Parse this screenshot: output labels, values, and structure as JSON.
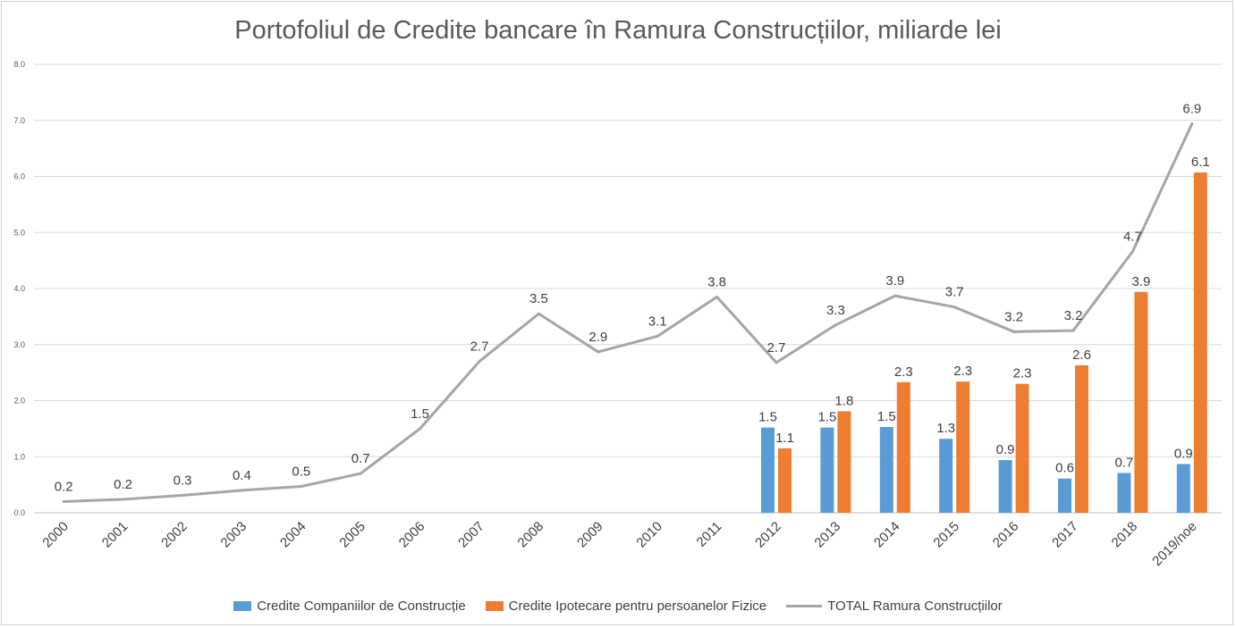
{
  "chart_data": {
    "type": "bar",
    "title": "Portofoliul de Credite bancare în Ramura Construcțiilor, miliarde lei",
    "xlabel": "",
    "ylabel": "",
    "ylim": [
      0,
      8
    ],
    "yticks": [
      "0.0",
      "1.0",
      "2.0",
      "3.0",
      "4.0",
      "5.0",
      "6.0",
      "7.0",
      "8.0"
    ],
    "grid": true,
    "legend_position": "bottom",
    "categories": [
      "2000",
      "2001",
      "2002",
      "2003",
      "2004",
      "2005",
      "2006",
      "2007",
      "2008",
      "2009",
      "2010",
      "2011",
      "2012",
      "2013",
      "2014",
      "2015",
      "2016",
      "2017",
      "2018",
      "2019/noe"
    ],
    "series": [
      {
        "name": "Credite Companiilor de Construcție",
        "type": "bar",
        "color": "#5B9BD5",
        "values": [
          null,
          null,
          null,
          null,
          null,
          null,
          null,
          null,
          null,
          null,
          null,
          null,
          1.52,
          1.52,
          1.53,
          1.32,
          0.94,
          0.61,
          0.71,
          0.87
        ],
        "labels": [
          "",
          "",
          "",
          "",
          "",
          "",
          "",
          "",
          "",
          "",
          "",
          "",
          "1.5",
          "1.5",
          "1.5",
          "1.3",
          "0.9",
          "0.6",
          "0.7",
          "0.9"
        ]
      },
      {
        "name": "Credite Ipotecare pentru  persoanelor Fizice",
        "type": "bar",
        "color": "#ED7D31",
        "values": [
          null,
          null,
          null,
          null,
          null,
          null,
          null,
          null,
          null,
          null,
          null,
          null,
          1.15,
          1.81,
          2.33,
          2.34,
          2.3,
          2.63,
          3.94,
          6.07
        ],
        "labels": [
          "",
          "",
          "",
          "",
          "",
          "",
          "",
          "",
          "",
          "",
          "",
          "",
          "1.1",
          "1.8",
          "2.3",
          "2.3",
          "2.3",
          "2.6",
          "3.9",
          "6.1"
        ]
      },
      {
        "name": "TOTAL Ramura Construcțiilor",
        "type": "line",
        "color": "#A5A5A5",
        "values": [
          0.2,
          0.24,
          0.31,
          0.4,
          0.47,
          0.7,
          1.5,
          2.7,
          3.55,
          2.87,
          3.15,
          3.85,
          2.68,
          3.35,
          3.87,
          3.67,
          3.23,
          3.25,
          4.66,
          6.94
        ],
        "labels": [
          "0.2",
          "0.2",
          "0.3",
          "0.4",
          "0.5",
          "0.7",
          "1.5",
          "2.7",
          "3.5",
          "2.9",
          "3.1",
          "3.8",
          "2.7",
          "3.3",
          "3.9",
          "3.7",
          "3.2",
          "3.2",
          "4.7",
          "6.9"
        ]
      }
    ]
  }
}
